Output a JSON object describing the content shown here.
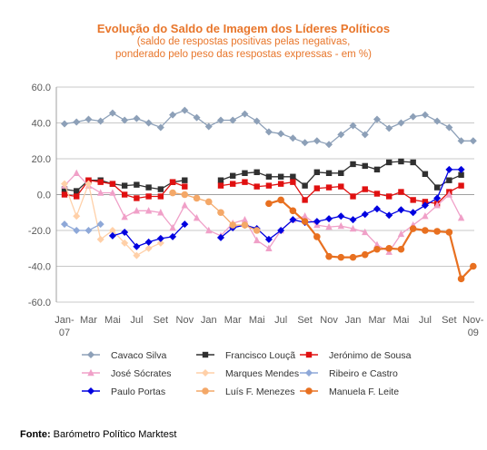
{
  "chart_data": {
    "type": "line",
    "title": "Evolução do Saldo  de Imagem dos Líderes Políticos",
    "subtitle_lines": [
      "(saldo de respostas positivas pelas negativas,",
      "ponderado pelo peso das respostas expressas - em %)"
    ],
    "ylim": [
      -60,
      60
    ],
    "y_ticks": [
      "60.0",
      "40.0",
      "20.0",
      "0.0",
      "-20.0",
      "-40.0",
      "-60.0"
    ],
    "x_tick_labels": [
      "Jan-\n07",
      "Mar",
      "Mai",
      "Jul",
      "Set",
      "Nov",
      "Jan",
      "Mar",
      "Mai",
      "Jul",
      "Set",
      "Nov",
      "Jan",
      "Mar",
      "Mai",
      "Jul",
      "Set",
      "Nov-\n09"
    ],
    "grid": true,
    "legend_position": "bottom",
    "n_points": 35,
    "series": [
      {
        "name": "Cavaco Silva",
        "color": "#8da0b8",
        "marker": "diamond",
        "values": [
          39.5,
          40.5,
          42,
          41,
          45.5,
          41.5,
          42.5,
          40,
          37.5,
          44.5,
          47,
          43,
          38,
          41.5,
          41.5,
          45,
          41,
          35,
          34,
          31.5,
          29,
          30,
          28,
          33.5,
          38.5,
          33.5,
          42,
          37,
          40,
          43.5,
          44.5,
          41,
          37.5,
          30,
          30
        ]
      },
      {
        "name": "Francisco Louçã",
        "color": "#303030",
        "marker": "square",
        "values": [
          3,
          2,
          8,
          8,
          6,
          5,
          5.5,
          4,
          3,
          7,
          8,
          null,
          null,
          8,
          10.5,
          12,
          12.5,
          10,
          10,
          10,
          5,
          12.5,
          12,
          12,
          17,
          16,
          14,
          18,
          18.5,
          18,
          11.5,
          4,
          8,
          11,
          null
        ]
      },
      {
        "name": "Jerónimo de Sousa",
        "color": "#e01010",
        "marker": "square",
        "values": [
          0,
          -1,
          8,
          7,
          6,
          0,
          -2,
          -1,
          -1,
          7,
          4.5,
          null,
          null,
          5,
          6,
          7,
          4.5,
          5,
          6,
          7,
          -3,
          3.5,
          4,
          4.5,
          -1,
          3,
          0.5,
          -1,
          1.5,
          -3,
          -4,
          -5,
          1.5,
          5,
          null
        ]
      },
      {
        "name": "José Sócrates",
        "color": "#f0a0c8",
        "marker": "triangle",
        "values": [
          5,
          12,
          5,
          1,
          1,
          -12.5,
          -9,
          -9,
          -10,
          -18.5,
          -6,
          -13,
          -20,
          -23,
          -16,
          -14,
          -25.5,
          -30,
          -20,
          -14,
          -12,
          -17,
          -18,
          -17.5,
          -19,
          -21,
          -28,
          -32,
          -22,
          -17,
          -12,
          -6,
          0,
          -13,
          null
        ]
      },
      {
        "name": "Marques Mendes",
        "color": "#ffd0a8",
        "marker": "diamond",
        "values": [
          6,
          -12,
          6,
          -25,
          -20,
          -27,
          -34,
          -30,
          -27,
          null,
          null,
          null,
          null,
          null,
          null,
          null,
          null,
          null,
          null,
          null,
          null,
          null,
          null,
          null,
          null,
          null,
          null,
          null,
          null,
          null,
          null,
          null,
          null,
          null,
          null
        ]
      },
      {
        "name": "Ribeiro e Castro",
        "color": "#8ea8d8",
        "marker": "diamond",
        "values": [
          -16.5,
          -20,
          -20,
          -16.5,
          null,
          null,
          null,
          null,
          null,
          null,
          null,
          null,
          null,
          null,
          null,
          null,
          null,
          null,
          null,
          null,
          null,
          null,
          null,
          null,
          null,
          null,
          null,
          null,
          null,
          null,
          null,
          null,
          null,
          null,
          null
        ]
      },
      {
        "name": "Paulo Portas",
        "color": "#0000e0",
        "marker": "diamond",
        "values": [
          null,
          null,
          null,
          null,
          -23,
          -21,
          -29,
          -26.5,
          -24.5,
          -23.5,
          -16.5,
          null,
          null,
          -24,
          -18.5,
          -17,
          -19,
          -25,
          -20,
          -14,
          -15.5,
          -15,
          -13.5,
          -12,
          -14,
          -11,
          -8,
          -11.5,
          -8.5,
          -10,
          -6,
          -2,
          14,
          14,
          null
        ]
      },
      {
        "name": "Luís F. Menezes",
        "color": "#f4a868",
        "marker": "circle",
        "values": [
          null,
          null,
          null,
          null,
          null,
          null,
          null,
          null,
          null,
          1,
          0,
          -2,
          -4,
          -10,
          -17,
          -17,
          -20,
          null,
          null,
          null,
          null,
          null,
          null,
          null,
          null,
          null,
          null,
          null,
          null,
          null,
          null,
          null,
          null,
          null,
          null
        ]
      },
      {
        "name": "Manuela F. Leite",
        "color": "#e87020",
        "marker": "circle",
        "values": [
          null,
          null,
          null,
          null,
          null,
          null,
          null,
          null,
          null,
          null,
          null,
          null,
          null,
          null,
          null,
          null,
          null,
          -5,
          -3,
          -9,
          -15,
          -23.5,
          -34.5,
          -35,
          -35,
          -33.5,
          -30.5,
          -30,
          -30.5,
          -19,
          -20,
          -20.5,
          -21,
          -47,
          -40
        ]
      }
    ]
  },
  "source": {
    "label": "Fonte:",
    "text": " Barómetro Político Marktest"
  }
}
